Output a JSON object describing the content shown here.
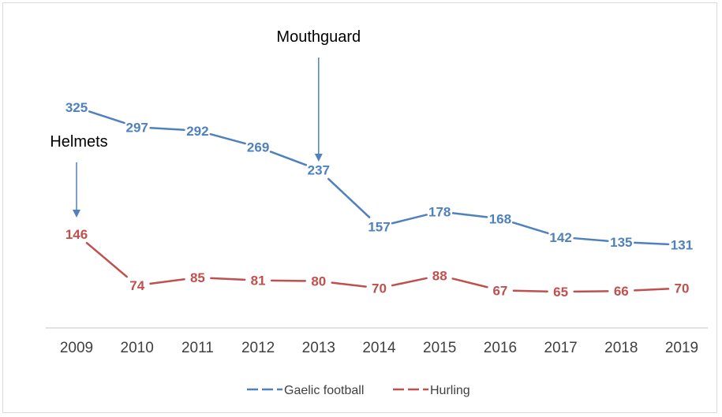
{
  "chart_data": {
    "type": "line",
    "x": [
      "2009",
      "2010",
      "2011",
      "2012",
      "2013",
      "2014",
      "2015",
      "2016",
      "2017",
      "2018",
      "2019"
    ],
    "series": [
      {
        "name": "Gaelic football",
        "color": "#4f81bd",
        "values": [
          325,
          297,
          292,
          269,
          237,
          157,
          178,
          168,
          142,
          135,
          131
        ]
      },
      {
        "name": "Hurling",
        "color": "#c0504d",
        "values": [
          146,
          74,
          85,
          81,
          80,
          70,
          88,
          67,
          65,
          66,
          70
        ]
      }
    ],
    "annotations": [
      {
        "text": "Helmets",
        "x": "2009",
        "arrow_color": "#4f81bd"
      },
      {
        "text": "Mouthguard",
        "x": "2013",
        "arrow_color": "#4f81bd"
      }
    ],
    "ylim": [
      0,
      350
    ],
    "grid": false,
    "legend_position": "bottom"
  }
}
